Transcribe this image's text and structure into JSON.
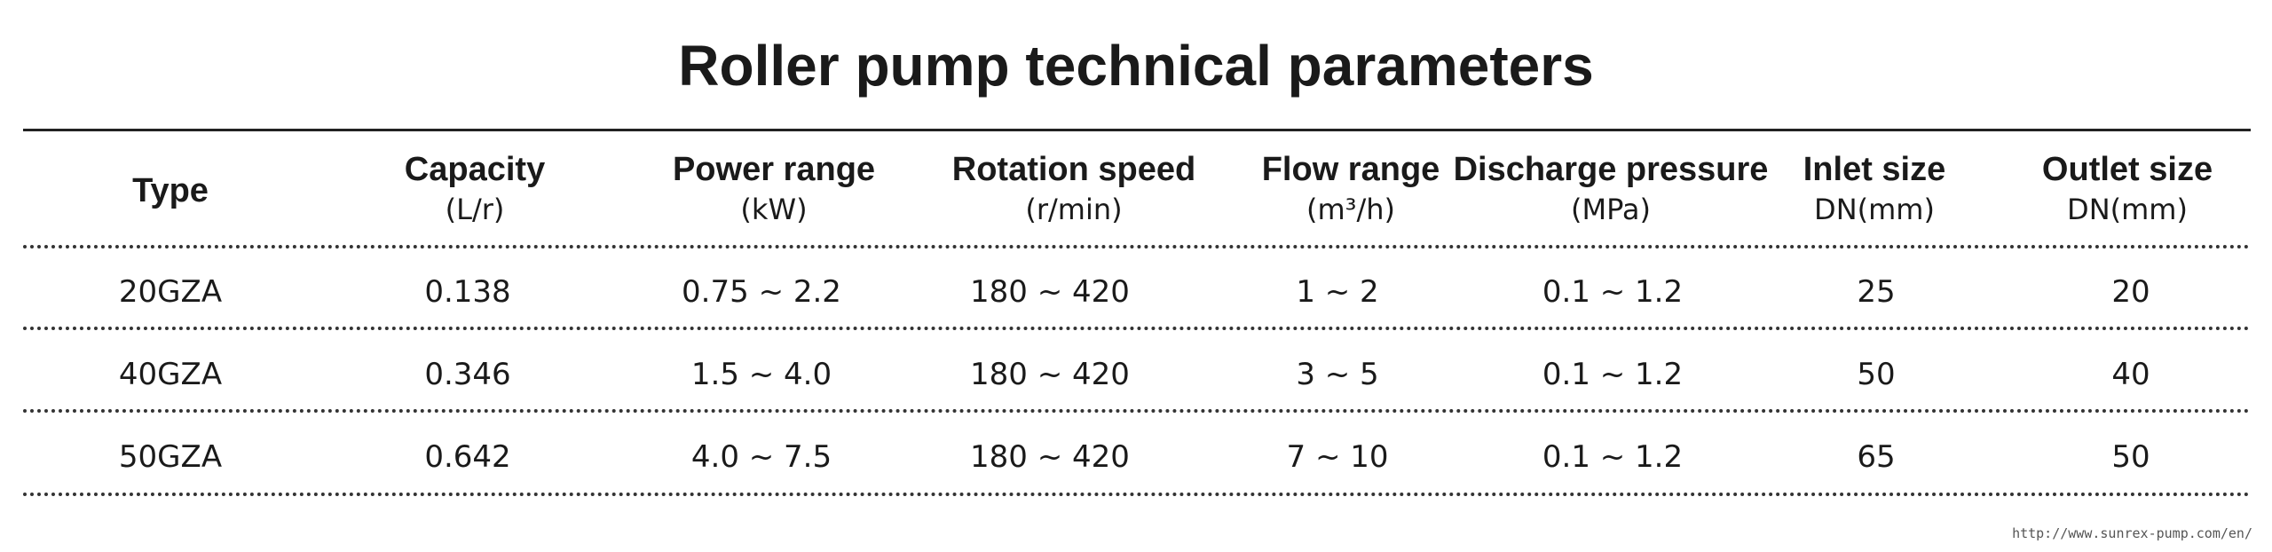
{
  "title": "Roller pump technical parameters",
  "table": {
    "columns": [
      {
        "label": "Type",
        "unit": ""
      },
      {
        "label": "Capacity",
        "unit": "(L/r)"
      },
      {
        "label": "Power range",
        "unit": "(kW)"
      },
      {
        "label": "Rotation speed",
        "unit": "(r/min)"
      },
      {
        "label": "Flow range",
        "unit": "(m³/h)"
      },
      {
        "label": "Discharge pressure",
        "unit": "(MPa)"
      },
      {
        "label": "Inlet size",
        "unit": "DN(mm)"
      },
      {
        "label": "Outlet size",
        "unit": "DN(mm)"
      }
    ],
    "rows": [
      [
        "20GZA",
        "0.138",
        "0.75 ~ 2.2",
        "180 ~ 420",
        "1 ~ 2",
        "0.1 ~ 1.2",
        "25",
        "20"
      ],
      [
        "40GZA",
        "0.346",
        "1.5 ~ 4.0",
        "180 ~ 420",
        "3 ~ 5",
        "0.1 ~ 1.2",
        "50",
        "40"
      ],
      [
        "50GZA",
        "0.642",
        "4.0 ~ 7.5",
        "180 ~ 420",
        "7 ~ 10",
        "0.1 ~ 1.2",
        "65",
        "50"
      ]
    ]
  },
  "watermark": "http://www.sunrex-pump.com/en/"
}
